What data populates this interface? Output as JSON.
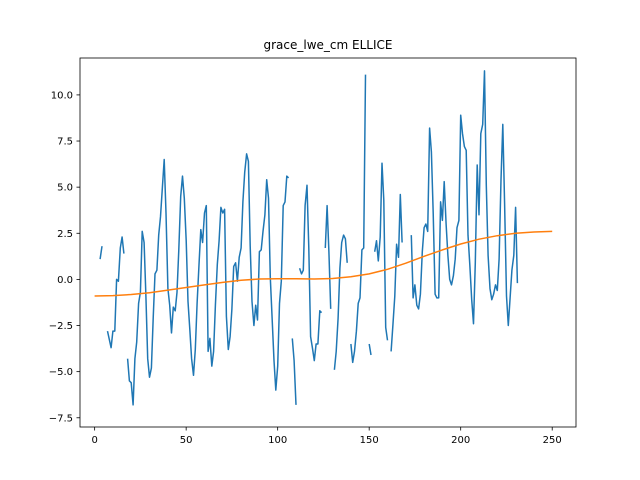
{
  "chart_data": {
    "type": "line",
    "title": "grace_lwe_cm ELLICE",
    "xlabel": "",
    "ylabel": "",
    "xlim": [
      -8,
      263
    ],
    "ylim": [
      -8.0,
      12.0
    ],
    "xticks": [
      0,
      50,
      100,
      150,
      200,
      250
    ],
    "yticks": [
      -7.5,
      -5.0,
      -2.5,
      0.0,
      2.5,
      5.0,
      7.5,
      10.0
    ],
    "ytick_labels": [
      "−7.5",
      "−5.0",
      "−2.5",
      "0.0",
      "2.5",
      "5.0",
      "7.5",
      "10.0"
    ],
    "grid": false,
    "series": [
      {
        "color": "#1f77b4",
        "points": [
          [
            3,
            1.1
          ],
          [
            4,
            1.8
          ],
          null,
          [
            7,
            -2.8
          ],
          [
            9,
            -3.7
          ],
          [
            10,
            -2.8
          ],
          [
            11,
            -2.8
          ],
          [
            12,
            0.0
          ],
          [
            13,
            -0.1
          ],
          [
            14,
            1.7
          ],
          [
            15,
            2.3
          ],
          [
            16,
            1.4
          ],
          null,
          [
            18,
            -4.3
          ],
          [
            19,
            -5.5
          ],
          [
            20,
            -5.6
          ],
          [
            21,
            -6.8
          ],
          [
            22,
            -4.3
          ],
          [
            23,
            -3.4
          ],
          [
            24,
            -1.3
          ],
          [
            25,
            -0.7
          ],
          [
            26,
            2.6
          ],
          [
            27,
            2.0
          ],
          [
            28,
            -0.9
          ],
          [
            29,
            -4.3
          ],
          [
            30,
            -5.3
          ],
          [
            31,
            -4.8
          ],
          [
            32,
            -2.1
          ],
          [
            33,
            0.3
          ],
          [
            34,
            0.5
          ],
          [
            35,
            2.4
          ],
          [
            36,
            3.4
          ],
          [
            37,
            5.0
          ],
          [
            38,
            6.5
          ],
          [
            39,
            3.6
          ],
          [
            40,
            -0.5
          ],
          [
            41,
            -1.4
          ],
          [
            42,
            -2.9
          ],
          [
            43,
            -1.5
          ],
          [
            44,
            -1.7
          ],
          [
            45,
            -0.7
          ],
          [
            46,
            1.6
          ],
          [
            47,
            4.5
          ],
          [
            48,
            5.6
          ],
          [
            49,
            4.4
          ],
          [
            50,
            2.1
          ],
          [
            51,
            -1.2
          ],
          [
            52,
            -2.7
          ],
          [
            53,
            -4.3
          ],
          [
            54,
            -5.2
          ],
          [
            55,
            -3.8
          ],
          [
            56,
            -1.3
          ],
          [
            57,
            0.8
          ],
          [
            58,
            2.7
          ],
          [
            59,
            2.0
          ],
          [
            60,
            3.6
          ],
          [
            61,
            4.0
          ],
          [
            62,
            -3.9
          ],
          [
            63,
            -3.2
          ],
          [
            64,
            -4.7
          ],
          [
            65,
            -3.9
          ],
          [
            66,
            -1.4
          ],
          [
            67,
            0.8
          ],
          [
            68,
            2.1
          ],
          [
            69,
            3.9
          ],
          [
            70,
            3.6
          ],
          [
            71,
            3.8
          ],
          [
            72,
            -2.0
          ],
          [
            73,
            -3.8
          ],
          [
            74,
            -3.1
          ],
          [
            75,
            -1.6
          ],
          [
            76,
            0.7
          ],
          [
            77,
            0.9
          ],
          [
            78,
            -0.1
          ],
          [
            79,
            1.2
          ],
          [
            80,
            1.7
          ],
          [
            81,
            4.2
          ],
          [
            82,
            5.8
          ],
          [
            83,
            6.8
          ],
          [
            84,
            6.4
          ],
          [
            85,
            1.8
          ],
          [
            86,
            -1.2
          ],
          [
            87,
            -2.5
          ],
          [
            88,
            -1.4
          ],
          [
            89,
            -2.2
          ],
          [
            90,
            1.5
          ],
          [
            91,
            1.6
          ],
          [
            92,
            2.6
          ],
          [
            93,
            3.5
          ],
          [
            94,
            5.4
          ],
          [
            95,
            4.4
          ],
          [
            96,
            0.1
          ],
          [
            97,
            -2.2
          ],
          [
            98,
            -4.4
          ],
          [
            99,
            -6.0
          ],
          [
            100,
            -4.7
          ],
          [
            101,
            -1.3
          ],
          [
            102,
            -0.1
          ],
          [
            103,
            4.0
          ],
          [
            104,
            4.2
          ],
          [
            105,
            5.6
          ],
          [
            106,
            5.5
          ],
          null,
          [
            108,
            -3.2
          ],
          [
            109,
            -4.4
          ],
          [
            110,
            -6.8
          ],
          null,
          [
            112,
            0.6
          ],
          [
            113,
            0.3
          ],
          [
            114,
            0.5
          ],
          [
            115,
            4.0
          ],
          [
            116,
            5.1
          ],
          [
            117,
            1.7
          ],
          [
            118,
            -3.1
          ],
          [
            119,
            -3.7
          ],
          [
            120,
            -4.4
          ],
          [
            121,
            -3.5
          ],
          [
            122,
            -3.5
          ],
          [
            123,
            -1.7
          ],
          [
            124,
            -1.8
          ],
          null,
          [
            126,
            1.7
          ],
          [
            127,
            4.0
          ],
          [
            128,
            1.5
          ],
          [
            129,
            -1.6
          ],
          null,
          [
            131,
            -4.9
          ],
          [
            132,
            -3.9
          ],
          [
            133,
            -2.1
          ],
          [
            134,
            0.6
          ],
          [
            135,
            2.0
          ],
          [
            136,
            2.4
          ],
          [
            137,
            2.2
          ],
          [
            138,
            0.9
          ],
          null,
          [
            140,
            -3.5
          ],
          [
            141,
            -4.5
          ],
          [
            142,
            -3.9
          ],
          [
            143,
            -2.8
          ],
          [
            144,
            -1.3
          ],
          [
            145,
            -1.0
          ],
          [
            146,
            1.6
          ],
          [
            147,
            1.7
          ],
          [
            148,
            11.1
          ],
          null,
          [
            150,
            -3.5
          ],
          [
            151,
            -4.1
          ],
          null,
          [
            153,
            1.5
          ],
          [
            154,
            2.1
          ],
          [
            155,
            1.0
          ],
          [
            156,
            2.3
          ],
          [
            157,
            6.3
          ],
          [
            158,
            4.3
          ],
          [
            159,
            -2.6
          ],
          [
            160,
            -3.3
          ],
          null,
          [
            162,
            -3.9
          ],
          [
            163,
            -2.4
          ],
          [
            164,
            -0.9
          ],
          [
            165,
            1.9
          ],
          [
            166,
            1.2
          ],
          [
            167,
            4.6
          ],
          [
            168,
            2.0
          ],
          null,
          [
            173,
            2.4
          ],
          [
            174,
            -1.0
          ],
          [
            175,
            -0.3
          ],
          [
            176,
            -1.4
          ],
          [
            177,
            -1.6
          ],
          [
            178,
            -0.8
          ],
          [
            179,
            1.5
          ],
          [
            180,
            2.8
          ],
          [
            181,
            3.0
          ],
          [
            182,
            2.6
          ],
          [
            183,
            8.2
          ],
          [
            184,
            6.9
          ],
          [
            185,
            3.6
          ],
          [
            186,
            -0.8
          ],
          [
            187,
            -1.0
          ],
          [
            188,
            -1.0
          ],
          [
            189,
            4.2
          ],
          [
            190,
            3.2
          ],
          [
            191,
            5.3
          ],
          [
            192,
            3.0
          ],
          [
            193,
            1.3
          ],
          [
            194,
            0.0
          ],
          [
            195,
            -0.3
          ],
          [
            196,
            0.2
          ],
          [
            197,
            1.1
          ],
          [
            198,
            2.8
          ],
          [
            199,
            3.2
          ],
          [
            200,
            8.9
          ],
          [
            201,
            7.9
          ],
          [
            202,
            7.2
          ],
          [
            203,
            7.0
          ],
          [
            204,
            2.4
          ],
          [
            205,
            0.8
          ],
          [
            206,
            -1.1
          ],
          [
            207,
            -2.4
          ],
          [
            208,
            0.9
          ],
          [
            209,
            6.2
          ],
          [
            210,
            3.5
          ],
          [
            211,
            7.9
          ],
          [
            212,
            8.4
          ],
          [
            213,
            11.3
          ],
          [
            214,
            5.1
          ],
          [
            215,
            1.3
          ],
          [
            216,
            -0.5
          ],
          [
            217,
            -1.1
          ],
          [
            218,
            -0.8
          ],
          [
            219,
            -0.3
          ],
          [
            220,
            -0.6
          ],
          [
            221,
            1.1
          ],
          [
            222,
            5.4
          ],
          [
            223,
            8.4
          ],
          [
            224,
            4.1
          ],
          [
            225,
            -0.9
          ],
          [
            226,
            -2.5
          ],
          [
            227,
            -1.0
          ],
          [
            228,
            0.5
          ],
          [
            229,
            1.3
          ],
          [
            230,
            3.9
          ],
          [
            231,
            -0.2
          ]
        ]
      },
      {
        "color": "#ff7f0e",
        "points": [
          [
            0,
            -0.9
          ],
          [
            10,
            -0.88
          ],
          [
            20,
            -0.82
          ],
          [
            30,
            -0.72
          ],
          [
            40,
            -0.58
          ],
          [
            50,
            -0.44
          ],
          [
            60,
            -0.3
          ],
          [
            70,
            -0.16
          ],
          [
            80,
            -0.05
          ],
          [
            90,
            0.02
          ],
          [
            100,
            0.04
          ],
          [
            110,
            0.03
          ],
          [
            120,
            0.02
          ],
          [
            130,
            0.05
          ],
          [
            140,
            0.14
          ],
          [
            150,
            0.3
          ],
          [
            160,
            0.55
          ],
          [
            170,
            0.88
          ],
          [
            180,
            1.25
          ],
          [
            190,
            1.6
          ],
          [
            200,
            1.92
          ],
          [
            210,
            2.18
          ],
          [
            220,
            2.37
          ],
          [
            230,
            2.5
          ],
          [
            240,
            2.57
          ],
          [
            250,
            2.6
          ]
        ]
      }
    ]
  }
}
